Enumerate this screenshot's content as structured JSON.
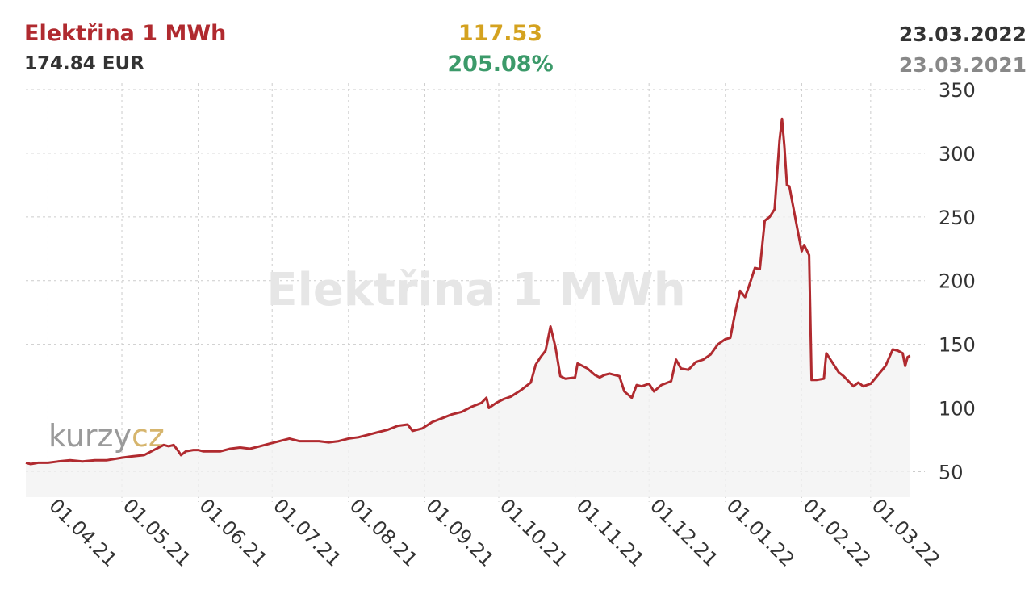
{
  "header": {
    "title": "Elektřina 1 MWh",
    "price": "174.84 EUR",
    "change": "117.53",
    "change_pct": "205.08%",
    "date_current": "23.03.2022",
    "date_previous": "23.03.2021"
  },
  "watermark": {
    "text": "Elektřina 1 MWh",
    "brand": "kurzy.cz"
  },
  "colors": {
    "line": "#b02a2f",
    "title": "#b02a2f",
    "change": "#d4a21f",
    "change_pct": "#3c9a6a",
    "grid": "#cccccc",
    "area": "#f2f2f2"
  },
  "chart_data": {
    "type": "line",
    "x_tick_labels": [
      "01.04.21",
      "01.05.21",
      "01.06.21",
      "01.07.21",
      "01.08.21",
      "01.09.21",
      "01.10.21",
      "01.11.21",
      "01.12.21",
      "01.01.22",
      "01.02.22",
      "01.03.22"
    ],
    "y_tick_labels": [
      "50",
      "100",
      "150",
      "200",
      "250",
      "300",
      "350"
    ],
    "ylim": [
      30,
      350
    ],
    "xlim": [
      "2021-03-23",
      "2022-03-23"
    ],
    "grid": true,
    "area_fill": true,
    "series": [
      {
        "points": [
          [
            "2021-03-23",
            57
          ],
          [
            "2021-03-25",
            56
          ],
          [
            "2021-03-28",
            57
          ],
          [
            "2021-04-01",
            57
          ],
          [
            "2021-04-05",
            58
          ],
          [
            "2021-04-10",
            59
          ],
          [
            "2021-04-15",
            58
          ],
          [
            "2021-04-20",
            59
          ],
          [
            "2021-04-25",
            59
          ],
          [
            "2021-05-01",
            61
          ],
          [
            "2021-05-05",
            62
          ],
          [
            "2021-05-10",
            63
          ],
          [
            "2021-05-14",
            67
          ],
          [
            "2021-05-18",
            71
          ],
          [
            "2021-05-20",
            70
          ],
          [
            "2021-05-22",
            71
          ],
          [
            "2021-05-24",
            66
          ],
          [
            "2021-05-25",
            63
          ],
          [
            "2021-05-27",
            66
          ],
          [
            "2021-05-30",
            67
          ],
          [
            "2021-06-01",
            67
          ],
          [
            "2021-06-03",
            66
          ],
          [
            "2021-06-06",
            66
          ],
          [
            "2021-06-10",
            66
          ],
          [
            "2021-06-14",
            68
          ],
          [
            "2021-06-18",
            69
          ],
          [
            "2021-06-22",
            68
          ],
          [
            "2021-06-26",
            70
          ],
          [
            "2021-06-30",
            72
          ],
          [
            "2021-07-04",
            74
          ],
          [
            "2021-07-08",
            76
          ],
          [
            "2021-07-12",
            74
          ],
          [
            "2021-07-16",
            74
          ],
          [
            "2021-07-20",
            74
          ],
          [
            "2021-07-24",
            73
          ],
          [
            "2021-07-28",
            74
          ],
          [
            "2021-08-01",
            76
          ],
          [
            "2021-08-05",
            77
          ],
          [
            "2021-08-09",
            79
          ],
          [
            "2021-08-13",
            81
          ],
          [
            "2021-08-17",
            83
          ],
          [
            "2021-08-21",
            86
          ],
          [
            "2021-08-25",
            87
          ],
          [
            "2021-08-27",
            82
          ],
          [
            "2021-08-31",
            84
          ],
          [
            "2021-09-04",
            89
          ],
          [
            "2021-09-08",
            92
          ],
          [
            "2021-09-12",
            95
          ],
          [
            "2021-09-16",
            97
          ],
          [
            "2021-09-20",
            101
          ],
          [
            "2021-09-24",
            104
          ],
          [
            "2021-09-26",
            108
          ],
          [
            "2021-09-27",
            100
          ],
          [
            "2021-09-30",
            104
          ],
          [
            "2021-10-03",
            107
          ],
          [
            "2021-10-06",
            109
          ],
          [
            "2021-10-10",
            114
          ],
          [
            "2021-10-14",
            120
          ],
          [
            "2021-10-16",
            134
          ],
          [
            "2021-10-18",
            140
          ],
          [
            "2021-10-20",
            145
          ],
          [
            "2021-10-22",
            164
          ],
          [
            "2021-10-24",
            148
          ],
          [
            "2021-10-26",
            125
          ],
          [
            "2021-10-28",
            123
          ],
          [
            "2021-11-01",
            124
          ],
          [
            "2021-11-02",
            135
          ],
          [
            "2021-11-06",
            131
          ],
          [
            "2021-11-09",
            126
          ],
          [
            "2021-11-11",
            124
          ],
          [
            "2021-11-13",
            126
          ],
          [
            "2021-11-15",
            127
          ],
          [
            "2021-11-19",
            125
          ],
          [
            "2021-11-21",
            113
          ],
          [
            "2021-11-24",
            108
          ],
          [
            "2021-11-26",
            118
          ],
          [
            "2021-11-28",
            117
          ],
          [
            "2021-12-01",
            119
          ],
          [
            "2021-12-03",
            113
          ],
          [
            "2021-12-06",
            118
          ],
          [
            "2021-12-10",
            121
          ],
          [
            "2021-12-12",
            138
          ],
          [
            "2021-12-14",
            131
          ],
          [
            "2021-12-17",
            130
          ],
          [
            "2021-12-20",
            136
          ],
          [
            "2021-12-23",
            138
          ],
          [
            "2021-12-26",
            142
          ],
          [
            "2021-12-29",
            150
          ],
          [
            "2022-01-01",
            154
          ],
          [
            "2022-01-03",
            155
          ],
          [
            "2022-01-05",
            175
          ],
          [
            "2022-01-07",
            192
          ],
          [
            "2022-01-09",
            187
          ],
          [
            "2022-01-11",
            198
          ],
          [
            "2022-01-13",
            210
          ],
          [
            "2022-01-15",
            209
          ],
          [
            "2022-01-17",
            247
          ],
          [
            "2022-01-19",
            250
          ],
          [
            "2022-01-21",
            256
          ],
          [
            "2022-01-23",
            310
          ],
          [
            "2022-01-24",
            327
          ],
          [
            "2022-01-25",
            305
          ],
          [
            "2022-01-26",
            275
          ],
          [
            "2022-01-27",
            274
          ],
          [
            "2022-01-30",
            243
          ],
          [
            "2022-02-01",
            223
          ],
          [
            "2022-02-02",
            228
          ],
          [
            "2022-02-04",
            220
          ],
          [
            "2022-02-05",
            122
          ],
          [
            "2022-02-07",
            122
          ],
          [
            "2022-02-10",
            123
          ],
          [
            "2022-02-11",
            143
          ],
          [
            "2022-02-13",
            137
          ],
          [
            "2022-02-16",
            128
          ],
          [
            "2022-02-18",
            125
          ],
          [
            "2022-02-22",
            117
          ],
          [
            "2022-02-24",
            120
          ],
          [
            "2022-02-26",
            117
          ],
          [
            "2022-03-01",
            119
          ],
          [
            "2022-03-04",
            126
          ],
          [
            "2022-03-07",
            133
          ],
          [
            "2022-03-10",
            146
          ],
          [
            "2022-03-12",
            145
          ],
          [
            "2022-03-14",
            143
          ],
          [
            "2022-03-15",
            133
          ],
          [
            "2022-03-16",
            140
          ],
          [
            "2022-03-17",
            141
          ]
        ]
      }
    ]
  }
}
